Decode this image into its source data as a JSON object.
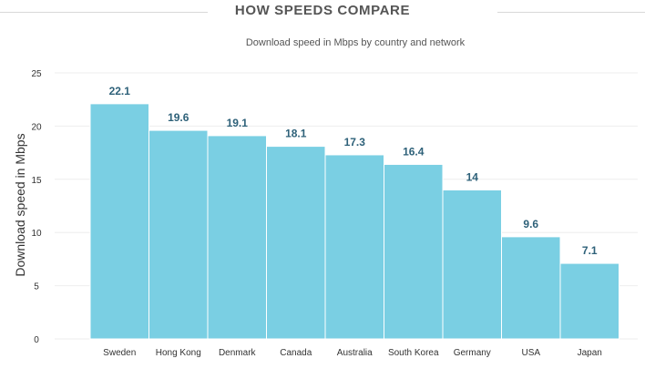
{
  "header": {
    "title": "HOW SPEEDS COMPARE",
    "subtitle": "Download speed in Mbps by country and network"
  },
  "colors": {
    "bar": "#7acfe3",
    "bar_stroke": "#ffffff",
    "value_label": "#2e6179",
    "grid": "#eeeeee",
    "tick_text": "#333333"
  },
  "chart_data": {
    "type": "bar",
    "title": "HOW SPEEDS COMPARE",
    "subtitle": "Download speed in Mbps by country and network",
    "xlabel": "",
    "ylabel": "Download speed in Mbps",
    "ylim": [
      0,
      25
    ],
    "yticks": [
      0,
      5,
      10,
      15,
      20,
      25
    ],
    "grid": true,
    "categories": [
      "Sweden",
      "Hong Kong",
      "Denmark",
      "Canada",
      "Australia",
      "South Korea",
      "Germany",
      "USA",
      "Japan"
    ],
    "values": [
      22.1,
      19.6,
      19.1,
      18.1,
      17.3,
      16.4,
      14,
      9.6,
      7.1
    ],
    "data_labels": [
      "22.1",
      "19.6",
      "19.1",
      "18.1",
      "17.3",
      "16.4",
      "14",
      "9.6",
      "7.1"
    ]
  }
}
